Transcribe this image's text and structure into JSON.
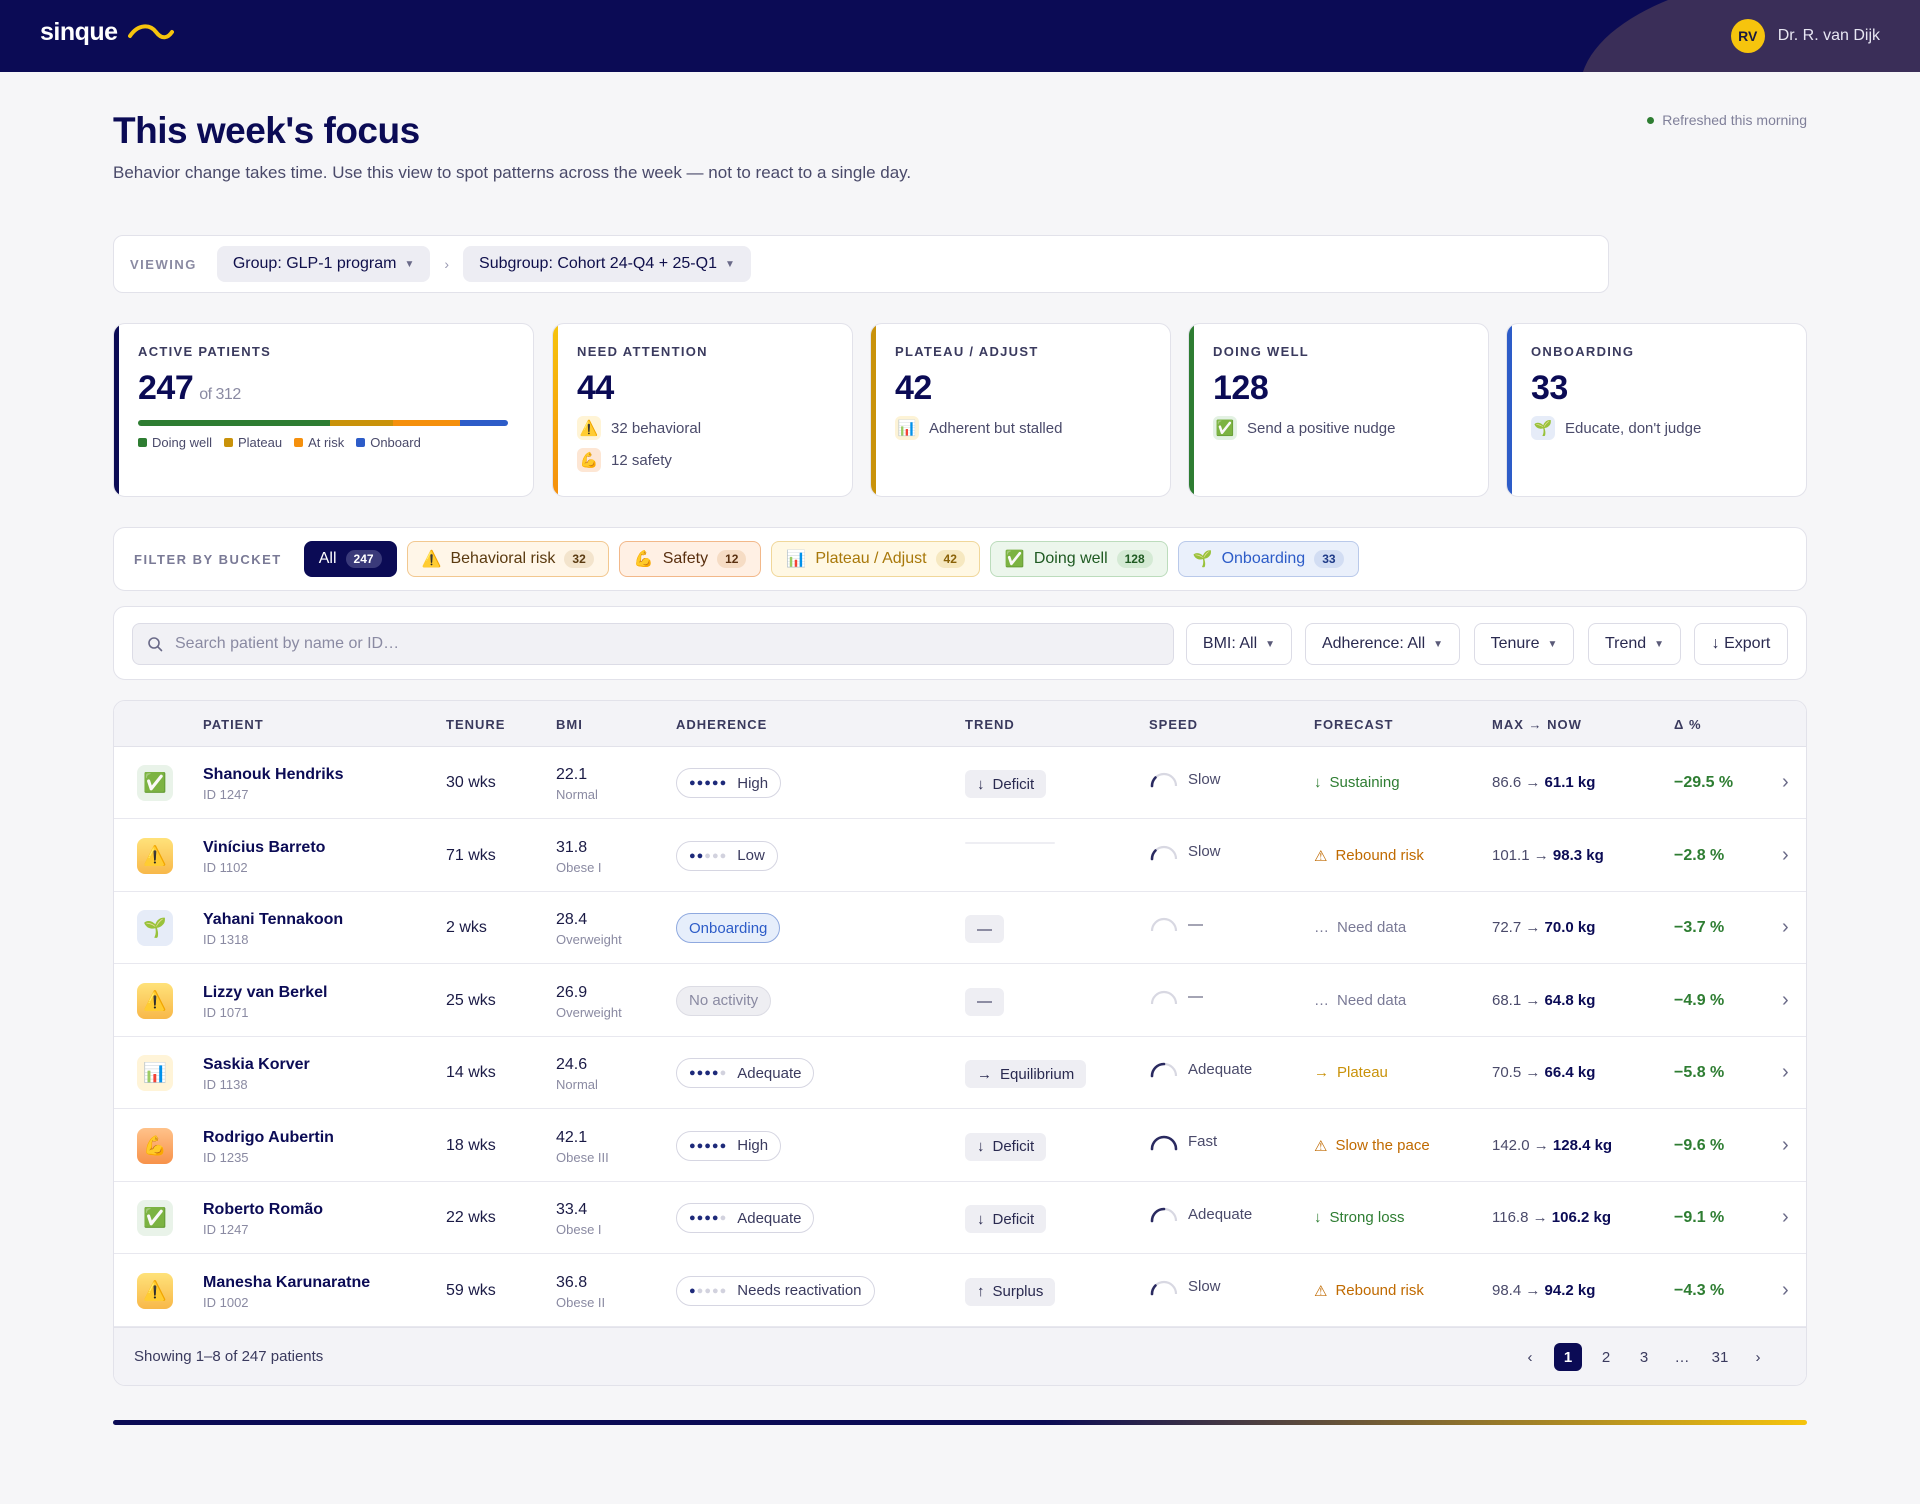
{
  "header": {
    "logo_text": "sinque",
    "user_initials": "RV",
    "user_name": "Dr. R. van Dijk"
  },
  "page": {
    "title": "This week's focus",
    "subtitle": "Behavior change takes time. Use this view to spot patterns across the week — not to react to a single day.",
    "refreshed": "Refreshed this morning"
  },
  "viewing": {
    "label": "VIEWING",
    "group": "Group: GLP-1 program",
    "subgroup": "Subgroup: Cohort 24-Q4 + 25-Q1",
    "separator": "›"
  },
  "kpis": {
    "active": {
      "label": "ACTIVE PATIENTS",
      "value": "247",
      "of": "of 312",
      "breakdown": [
        {
          "name": "Doing well",
          "fraction": 0.52,
          "color": "#2e7d32"
        },
        {
          "name": "Plateau",
          "fraction": 0.17,
          "color": "#c9920a"
        },
        {
          "name": "At risk",
          "fraction": 0.18,
          "color": "#f5900d"
        },
        {
          "name": "Onboard",
          "fraction": 0.13,
          "color": "#2d5cc8"
        }
      ],
      "legend": [
        "Doing well",
        "Plateau",
        "At risk",
        "Onboard"
      ]
    },
    "attention": {
      "label": "NEED ATTENTION",
      "value": "44",
      "line1": "32 behavioral",
      "line2": "12 safety"
    },
    "plateau": {
      "label": "PLATEAU / ADJUST",
      "value": "42",
      "line1": "Adherent but stalled"
    },
    "doing_well": {
      "label": "DOING WELL",
      "value": "128",
      "line1": "Send a positive nudge"
    },
    "onboarding": {
      "label": "ONBOARDING",
      "value": "33",
      "line1": "Educate, don't judge"
    }
  },
  "filter": {
    "label": "FILTER BY BUCKET",
    "buckets": [
      {
        "icon": "",
        "label": "All",
        "count": "247"
      },
      {
        "icon": "⚠️",
        "label": "Behavioral risk",
        "count": "32"
      },
      {
        "icon": "💪",
        "label": "Safety",
        "count": "12"
      },
      {
        "icon": "📊",
        "label": "Plateau / Adjust",
        "count": "42"
      },
      {
        "icon": "✅",
        "label": "Doing well",
        "count": "128"
      },
      {
        "icon": "🌱",
        "label": "Onboarding",
        "count": "33"
      }
    ]
  },
  "tools": {
    "search_placeholder": "Search patient by name or ID…",
    "bmi": "BMI: All",
    "adherence": "Adherence: All",
    "tenure": "Tenure",
    "trend": "Trend",
    "export": "↓ Export"
  },
  "table": {
    "headers": [
      "PATIENT",
      "TENURE",
      "BMI",
      "ADHERENCE",
      "TREND",
      "SPEED",
      "FORECAST",
      "MAX → NOW",
      "Δ %"
    ],
    "rows": [
      {
        "bucket": "✅",
        "name": "Shanouk Hendriks",
        "id": "ID 1247",
        "tenure": "30 wks",
        "bmi": "22.1",
        "bmi_cat": "Normal",
        "adh_level": 5,
        "adh": "High",
        "trend_icon": "↓",
        "trend": "Deficit",
        "speed_level": 1,
        "speed": "Slow",
        "fc_icon": "↓",
        "forecast": "Sustaining",
        "max": "86.6",
        "now": "61.1 kg",
        "delta": "−29.5 %"
      },
      {
        "bucket": "⚠️",
        "name": "Vinícius Barreto",
        "id": "ID 1102",
        "tenure": "71 wks",
        "bmi": "31.8",
        "bmi_cat": "Obese I",
        "adh_level": 2,
        "adh": "Low",
        "trend_icon": "",
        "trend": "",
        "speed_level": 1,
        "speed": "Slow",
        "fc_icon": "⚠",
        "forecast": "Rebound risk",
        "max": "101.1",
        "now": "98.3 kg",
        "delta": "−2.8 %"
      },
      {
        "bucket": "🌱",
        "name": "Yahani Tennakoon",
        "id": "ID 1318",
        "tenure": "2 wks",
        "bmi": "28.4",
        "bmi_cat": "Overweight",
        "adh_level": 0,
        "adh": "Onboarding",
        "trend_icon": "",
        "trend": "—",
        "speed_level": 0,
        "speed": "—",
        "fc_icon": "…",
        "forecast": "Need data",
        "max": "72.7",
        "now": "70.0 kg",
        "delta": "−3.7 %"
      },
      {
        "bucket": "⚠️",
        "name": "Lizzy van Berkel",
        "id": "ID 1071",
        "tenure": "25 wks",
        "bmi": "26.9",
        "bmi_cat": "Overweight",
        "adh_level": 0,
        "adh": "No activity",
        "trend_icon": "",
        "trend": "—",
        "speed_level": 0,
        "speed": "—",
        "fc_icon": "…",
        "forecast": "Need data",
        "max": "68.1",
        "now": "64.8 kg",
        "delta": "−4.9 %"
      },
      {
        "bucket": "📊",
        "name": "Saskia Korver",
        "id": "ID 1138",
        "tenure": "14 wks",
        "bmi": "24.6",
        "bmi_cat": "Normal",
        "adh_level": 4,
        "adh": "Adequate",
        "trend_icon": "→",
        "trend": "Equilibrium",
        "speed_level": 2,
        "speed": "Adequate",
        "fc_icon": "→",
        "forecast": "Plateau",
        "max": "70.5",
        "now": "66.4 kg",
        "delta": "−5.8 %"
      },
      {
        "bucket": "💪",
        "name": "Rodrigo Aubertin",
        "id": "ID 1235",
        "tenure": "18 wks",
        "bmi": "42.1",
        "bmi_cat": "Obese III",
        "adh_level": 5,
        "adh": "High",
        "trend_icon": "↓",
        "trend": "Deficit",
        "speed_level": 3,
        "speed": "Fast",
        "fc_icon": "⚠",
        "forecast": "Slow the pace",
        "max": "142.0",
        "now": "128.4 kg",
        "delta": "−9.6 %"
      },
      {
        "bucket": "✅",
        "name": "Roberto Romão",
        "id": "ID 1247",
        "tenure": "22 wks",
        "bmi": "33.4",
        "bmi_cat": "Obese I",
        "adh_level": 4,
        "adh": "Adequate",
        "trend_icon": "↓",
        "trend": "Deficit",
        "speed_level": 2,
        "speed": "Adequate",
        "fc_icon": "↓",
        "forecast": "Strong loss",
        "max": "116.8",
        "now": "106.2 kg",
        "delta": "−9.1 %"
      },
      {
        "bucket": "⚠️",
        "name": "Manesha Karunaratne",
        "id": "ID 1002",
        "tenure": "59 wks",
        "bmi": "36.8",
        "bmi_cat": "Obese II",
        "adh_level": 1,
        "adh": "Needs reactivation",
        "trend_icon": "↑",
        "trend": "Surplus",
        "speed_level": 1,
        "speed": "Slow",
        "fc_icon": "⚠",
        "forecast": "Rebound risk",
        "max": "98.4",
        "now": "94.2 kg",
        "delta": "−4.3 %"
      }
    ],
    "showing": "Showing 1–8 of 247 patients",
    "pager": [
      "‹",
      "1",
      "2",
      "3",
      "…",
      "31",
      "›"
    ],
    "arrow": "→"
  }
}
